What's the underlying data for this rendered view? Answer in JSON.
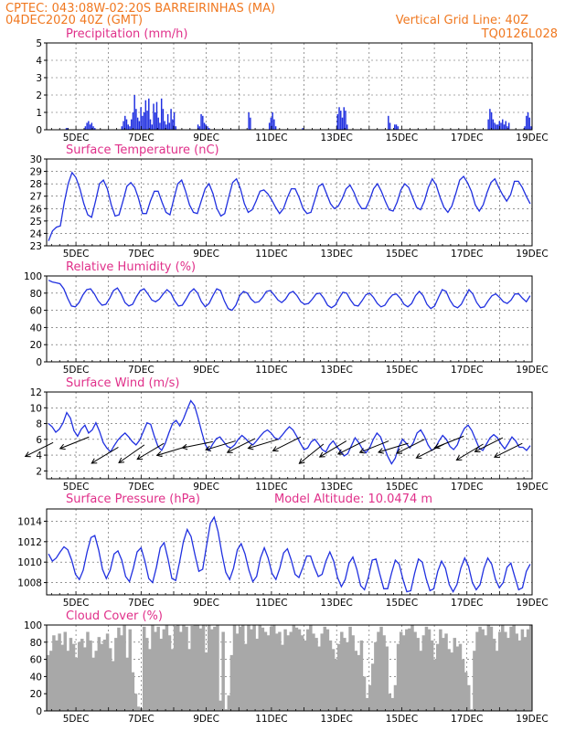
{
  "header": {
    "left1": "CPTEC:   043:08W-02:20S   BARREIRINHAS (MA)",
    "left2": "04DEC2020 40Z (GMT)",
    "right1": "Vertical Grid Line: 40Z",
    "right2": "TQ0126L028"
  },
  "colors": {
    "line": "#2030e0",
    "title": "#e0308a",
    "header": "#f07820",
    "cloud": "#a8a8a8",
    "arrow": "#000000"
  },
  "chart_data": [
    {
      "id": "precip",
      "type": "bar",
      "title": "Precipitation (mm/h)",
      "ylim": [
        0,
        5
      ],
      "yticks": [
        "0",
        "1",
        "2",
        "3",
        "4",
        "5"
      ],
      "xticks": [
        "5DEC",
        "7DEC",
        "9DEC",
        "11DEC",
        "13DEC",
        "15DEC",
        "17DEC",
        "19DEC"
      ],
      "xrange_days": [
        4.1,
        19.0
      ],
      "values": [
        0,
        0,
        0,
        0,
        0,
        0,
        0,
        0,
        0,
        0,
        0,
        0,
        0.1,
        0.1,
        0,
        0,
        0,
        0,
        0,
        0,
        0,
        0,
        0,
        0,
        0.2,
        0.4,
        0.5,
        0.3,
        0.4,
        0.2,
        0.1,
        0,
        0,
        0,
        0,
        0,
        0,
        0,
        0,
        0,
        0,
        0,
        0,
        0,
        0,
        0,
        0,
        0.2,
        0.5,
        0.8,
        0.6,
        0.3,
        0.2,
        0.6,
        1.0,
        2.0,
        1.2,
        0.7,
        0.5,
        1.3,
        0.8,
        1.0,
        1.7,
        1.1,
        1.8,
        0.6,
        0.3,
        1.5,
        1.0,
        1.6,
        0.7,
        0.4,
        1.8,
        1.2,
        0.5,
        0.3,
        0.9,
        0.4,
        1.2,
        0.6,
        1.0,
        0.2,
        0,
        0,
        0,
        0,
        0,
        0,
        0,
        0,
        0,
        0,
        0,
        0,
        0,
        0.3,
        0.2,
        0.9,
        0.8,
        0.4,
        0.3,
        0.2,
        0.1,
        0,
        0,
        0,
        0,
        0,
        0,
        0,
        0,
        0,
        0,
        0,
        0,
        0,
        0,
        0,
        0,
        0,
        0,
        0,
        0,
        0,
        0,
        0,
        0,
        1.0,
        0.7,
        0,
        0,
        0,
        0,
        0,
        0,
        0,
        0,
        0,
        0,
        0,
        0.4,
        0.7,
        1.0,
        0.6,
        0.2,
        0,
        0,
        0,
        0,
        0,
        0,
        0,
        0,
        0,
        0,
        0,
        0,
        0,
        0,
        0,
        0,
        0.1,
        0,
        0,
        0,
        0,
        0,
        0,
        0,
        0,
        0,
        0,
        0,
        0,
        0,
        0,
        0,
        0,
        0,
        0,
        0,
        0,
        0,
        0.9,
        1.3,
        1.1,
        0.7,
        1.3,
        1.1,
        0.3,
        0,
        0,
        0,
        0,
        0,
        0,
        0,
        0,
        0,
        0,
        0,
        0,
        0,
        0,
        0,
        0,
        0,
        0,
        0,
        0,
        0,
        0,
        0,
        0,
        0,
        0.8,
        0.4,
        0,
        0,
        0.3,
        0.3,
        0.2,
        0,
        0,
        0,
        0,
        0,
        0,
        0,
        0,
        0,
        0,
        0,
        0,
        0,
        0,
        0,
        0,
        0,
        0,
        0,
        0,
        0,
        0,
        0,
        0,
        0,
        0,
        0,
        0,
        0,
        0,
        0,
        0,
        0,
        0,
        0,
        0,
        0,
        0,
        0,
        0,
        0,
        0,
        0,
        0,
        0,
        0,
        0,
        0,
        0,
        0,
        0,
        0,
        0,
        0,
        0,
        0,
        0.6,
        1.2,
        1.0,
        0.6,
        0.4,
        0.3,
        0.3,
        0.5,
        0.4,
        0.6,
        0.3,
        0.5,
        0.2,
        0.4,
        0,
        0,
        0,
        0,
        0,
        0,
        0,
        0,
        0,
        0.2,
        0.8,
        1.0,
        0.7,
        0.2
      ]
    },
    {
      "id": "temp",
      "type": "line",
      "title": "Surface Temperature (nC)",
      "ylim": [
        23,
        30
      ],
      "yticks": [
        "23",
        "24",
        "25",
        "26",
        "27",
        "28",
        "29",
        "30"
      ],
      "xticks": [
        "5DEC",
        "7DEC",
        "9DEC",
        "11DEC",
        "13DEC",
        "15DEC",
        "17DEC",
        "19DEC"
      ],
      "xrange_days": [
        4.1,
        19.0
      ],
      "values": [
        23.4,
        24.2,
        24.5,
        24.6,
        26.5,
        28.0,
        28.9,
        28.5,
        27.6,
        26.4,
        25.5,
        25.3,
        26.6,
        28.0,
        28.3,
        27.6,
        26.3,
        25.4,
        25.5,
        26.6,
        27.8,
        28.1,
        27.7,
        26.8,
        25.6,
        25.6,
        26.6,
        27.4,
        27.4,
        26.5,
        25.7,
        25.5,
        26.8,
        28.0,
        28.3,
        27.4,
        26.3,
        25.7,
        25.6,
        26.6,
        27.6,
        28.0,
        27.2,
        26.0,
        25.4,
        25.6,
        26.9,
        28.1,
        28.4,
        27.6,
        26.4,
        25.7,
        25.9,
        26.6,
        27.4,
        27.5,
        27.2,
        26.7,
        26.1,
        25.6,
        26.0,
        26.9,
        27.6,
        27.6,
        26.9,
        26.0,
        25.6,
        25.7,
        26.7,
        27.8,
        28.0,
        27.2,
        26.4,
        26.0,
        26.2,
        26.8,
        27.6,
        27.9,
        27.3,
        26.5,
        26.0,
        26.0,
        26.7,
        27.6,
        28.0,
        27.4,
        26.6,
        25.9,
        25.8,
        26.5,
        27.5,
        28.0,
        27.7,
        26.9,
        26.1,
        25.9,
        26.6,
        27.7,
        28.4,
        27.9,
        26.9,
        26.1,
        25.7,
        26.2,
        27.2,
        28.3,
        28.6,
        28.1,
        27.4,
        26.3,
        25.8,
        26.3,
        27.3,
        28.1,
        28.4,
        27.7,
        27.1,
        26.6,
        27.1,
        28.2,
        28.2,
        27.7,
        27.0,
        26.4
      ]
    },
    {
      "id": "rh",
      "type": "line",
      "title": "Relative Humidity (%)",
      "ylim": [
        0,
        100
      ],
      "yticks": [
        "0",
        "20",
        "40",
        "60",
        "80",
        "100"
      ],
      "xticks": [
        "5DEC",
        "7DEC",
        "9DEC",
        "11DEC",
        "13DEC",
        "15DEC",
        "17DEC",
        "19DEC"
      ],
      "xrange_days": [
        4.1,
        19.0
      ],
      "values": [
        95,
        93,
        92,
        91,
        85,
        74,
        65,
        64,
        69,
        78,
        84,
        85,
        79,
        71,
        66,
        67,
        74,
        83,
        86,
        79,
        69,
        65,
        67,
        76,
        83,
        85,
        79,
        72,
        70,
        73,
        79,
        84,
        80,
        71,
        65,
        66,
        73,
        81,
        85,
        80,
        70,
        64,
        68,
        77,
        85,
        83,
        71,
        62,
        60,
        66,
        77,
        82,
        80,
        73,
        69,
        70,
        75,
        82,
        83,
        78,
        72,
        69,
        73,
        80,
        82,
        77,
        70,
        67,
        68,
        73,
        79,
        80,
        74,
        66,
        63,
        66,
        74,
        81,
        80,
        72,
        66,
        65,
        71,
        78,
        80,
        75,
        68,
        64,
        66,
        73,
        78,
        79,
        74,
        67,
        64,
        68,
        77,
        82,
        77,
        67,
        62,
        65,
        75,
        84,
        82,
        72,
        65,
        63,
        67,
        76,
        84,
        79,
        69,
        63,
        64,
        71,
        77,
        79,
        75,
        70,
        68,
        72,
        79,
        79,
        74,
        70,
        77
      ]
    },
    {
      "id": "wind",
      "type": "line",
      "title": "Surface Wind (m/s)",
      "ylim": [
        1,
        12
      ],
      "yticks": [
        "2",
        "4",
        "6",
        "8",
        "10",
        "12"
      ],
      "xticks": [
        "5DEC",
        "7DEC",
        "9DEC",
        "11DEC",
        "13DEC",
        "15DEC",
        "17DEC",
        "19DEC"
      ],
      "xrange_days": [
        4.1,
        19.0
      ],
      "values": [
        8.0,
        7.6,
        6.9,
        7.3,
        8.1,
        9.4,
        8.7,
        7.1,
        6.4,
        7.3,
        7.8,
        6.8,
        7.2,
        8.1,
        7.0,
        5.6,
        4.9,
        4.4,
        5.2,
        5.9,
        6.4,
        6.8,
        6.3,
        5.7,
        5.3,
        5.9,
        7.0,
        8.1,
        7.9,
        6.4,
        5.1,
        4.6,
        5.5,
        6.8,
        8.0,
        8.4,
        7.7,
        8.6,
        9.8,
        10.9,
        10.3,
        8.7,
        6.9,
        5.3,
        4.6,
        5.4,
        6.1,
        6.3,
        5.7,
        5.1,
        4.9,
        5.3,
        6.0,
        6.5,
        6.1,
        5.6,
        5.3,
        5.8,
        6.4,
        6.9,
        7.2,
        6.8,
        6.2,
        6.0,
        6.5,
        7.1,
        7.6,
        7.2,
        6.4,
        5.5,
        4.7,
        4.9,
        5.7,
        6.0,
        5.4,
        4.7,
        4.4,
        5.3,
        5.8,
        5.1,
        4.5,
        3.9,
        4.2,
        5.2,
        6.2,
        5.6,
        4.8,
        4.3,
        4.9,
        6.0,
        6.8,
        6.3,
        5.0,
        3.8,
        2.9,
        3.6,
        5.1,
        6.0,
        5.5,
        4.9,
        5.6,
        6.8,
        7.2,
        6.4,
        5.3,
        4.6,
        4.9,
        5.8,
        6.5,
        6.0,
        5.1,
        4.7,
        5.3,
        6.5,
        7.4,
        7.8,
        7.1,
        6.0,
        4.9,
        4.6,
        5.4,
        6.2,
        6.6,
        6.2,
        5.4,
        4.8,
        5.5,
        6.3,
        5.8,
        5.0,
        5.0,
        4.6,
        5.2
      ]
    },
    {
      "id": "pres",
      "type": "line",
      "title": "Surface Pressure (hPa)",
      "subtitle": "Model Altitude: 10.0474 m",
      "ylim": [
        1006.8,
        1015.2
      ],
      "yticks": [
        "1008",
        "1010",
        "1012",
        "1014"
      ],
      "xticks": [
        "5DEC",
        "7DEC",
        "9DEC",
        "11DEC",
        "13DEC",
        "15DEC",
        "17DEC",
        "19DEC"
      ],
      "xrange_days": [
        4.1,
        19.0
      ],
      "values": [
        1010.8,
        1010.1,
        1010.4,
        1011.0,
        1011.5,
        1011.2,
        1010.2,
        1008.8,
        1008.3,
        1009.2,
        1011.0,
        1012.4,
        1012.6,
        1011.2,
        1009.3,
        1008.4,
        1009.2,
        1010.8,
        1011.1,
        1010.2,
        1008.6,
        1008.1,
        1009.4,
        1011.0,
        1011.4,
        1010.1,
        1008.4,
        1008.0,
        1009.5,
        1011.4,
        1011.9,
        1010.3,
        1008.4,
        1008.2,
        1010.0,
        1012.0,
        1013.2,
        1012.5,
        1010.7,
        1009.1,
        1009.3,
        1011.6,
        1013.8,
        1014.4,
        1013.0,
        1010.8,
        1009.0,
        1008.3,
        1009.4,
        1011.2,
        1011.8,
        1010.8,
        1009.2,
        1008.1,
        1008.6,
        1010.4,
        1011.4,
        1010.4,
        1008.9,
        1008.3,
        1009.4,
        1010.9,
        1011.3,
        1010.2,
        1008.8,
        1008.5,
        1009.5,
        1010.6,
        1010.6,
        1009.5,
        1008.6,
        1008.8,
        1010.1,
        1011.0,
        1010.1,
        1008.5,
        1007.6,
        1008.3,
        1009.9,
        1010.5,
        1009.3,
        1007.7,
        1007.3,
        1008.5,
        1010.2,
        1010.3,
        1008.8,
        1007.4,
        1007.4,
        1008.9,
        1010.2,
        1009.8,
        1008.3,
        1007.1,
        1007.2,
        1008.9,
        1010.3,
        1010.0,
        1008.4,
        1007.2,
        1007.4,
        1009.1,
        1010.1,
        1009.4,
        1007.8,
        1007.1,
        1007.8,
        1009.4,
        1010.4,
        1009.6,
        1008.0,
        1007.3,
        1007.8,
        1009.4,
        1010.4,
        1009.8,
        1008.3,
        1007.5,
        1008.0,
        1009.5,
        1009.9,
        1008.6,
        1007.3,
        1007.5,
        1009.1,
        1009.8
      ]
    },
    {
      "id": "cloud",
      "type": "area",
      "title": "Cloud Cover (%)",
      "ylim": [
        0,
        100
      ],
      "yticks": [
        "0",
        "20",
        "40",
        "60",
        "80",
        "100"
      ],
      "xticks": [
        "5DEC",
        "7DEC",
        "9DEC",
        "11DEC",
        "13DEC",
        "15DEC",
        "17DEC",
        "19DEC"
      ],
      "xrange_days": [
        4.1,
        19.0
      ],
      "values": [
        65,
        70,
        88,
        82,
        90,
        77,
        92,
        70,
        85,
        78,
        62,
        80,
        84,
        74,
        92,
        82,
        62,
        70,
        86,
        78,
        83,
        90,
        73,
        58,
        85,
        97,
        88,
        100,
        62,
        95,
        45,
        20,
        5,
        3,
        98,
        85,
        72,
        100,
        92,
        98,
        84,
        95,
        100,
        88,
        72,
        99,
        100,
        92,
        100,
        98,
        72,
        99,
        100,
        100,
        96,
        100,
        68,
        100,
        95,
        98,
        100,
        12,
        92,
        2,
        18,
        65,
        100,
        90,
        98,
        100,
        78,
        100,
        95,
        100,
        84,
        100,
        97,
        92,
        88,
        98,
        100,
        90,
        92,
        77,
        95,
        88,
        92,
        100,
        97,
        95,
        88,
        82,
        95,
        100,
        90,
        85,
        75,
        90,
        98,
        95,
        82,
        72,
        60,
        78,
        92,
        85,
        80,
        98,
        88,
        70,
        65,
        82,
        40,
        15,
        30,
        55,
        80,
        92,
        98,
        88,
        75,
        20,
        15,
        30,
        78,
        92,
        88,
        95,
        96,
        100,
        92,
        85,
        70,
        88,
        98,
        95,
        82,
        60,
        78,
        95,
        85,
        90,
        72,
        68,
        85,
        75,
        78,
        60,
        45,
        30,
        2,
        70,
        92,
        98,
        95,
        88,
        100,
        98,
        84,
        70,
        92,
        100,
        92,
        85,
        98,
        100,
        90,
        82,
        95,
        86,
        95,
        100
      ]
    },
    {
      "id": "wind_vectors",
      "type": "vector",
      "points": [
        [
          4.3,
          5.6,
          -1.0,
          -0.5
        ],
        [
          5.4,
          6.3,
          -1.0,
          -0.4
        ],
        [
          6.3,
          5.0,
          -1.0,
          -0.6
        ],
        [
          7.1,
          5.3,
          -1.0,
          -0.7
        ],
        [
          7.7,
          5.5,
          -1.0,
          -0.6
        ],
        [
          8.4,
          5.1,
          -1.0,
          -0.3
        ],
        [
          9.2,
          5.7,
          -1.0,
          -0.2
        ],
        [
          9.9,
          5.8,
          -1.0,
          -0.3
        ],
        [
          10.5,
          6.1,
          -1.0,
          -0.5
        ],
        [
          11.2,
          6.0,
          -1.0,
          -0.3
        ],
        [
          11.9,
          6.3,
          -1.0,
          -0.5
        ],
        [
          12.6,
          5.4,
          -1.0,
          -0.8
        ],
        [
          13.3,
          5.8,
          -1.0,
          -0.6
        ],
        [
          13.9,
          5.9,
          -1.0,
          -0.5
        ],
        [
          14.6,
          5.8,
          -1.0,
          -0.4
        ],
        [
          15.2,
          5.5,
          -1.0,
          -0.3
        ],
        [
          15.7,
          6.0,
          -1.0,
          -0.5
        ],
        [
          16.3,
          5.4,
          -1.0,
          -0.5
        ],
        [
          16.9,
          6.4,
          -1.0,
          -0.4
        ],
        [
          17.5,
          5.4,
          -1.0,
          -0.6
        ],
        [
          18.1,
          6.2,
          -1.0,
          -0.5
        ],
        [
          18.7,
          5.5,
          -1.0,
          -0.5
        ]
      ]
    }
  ]
}
